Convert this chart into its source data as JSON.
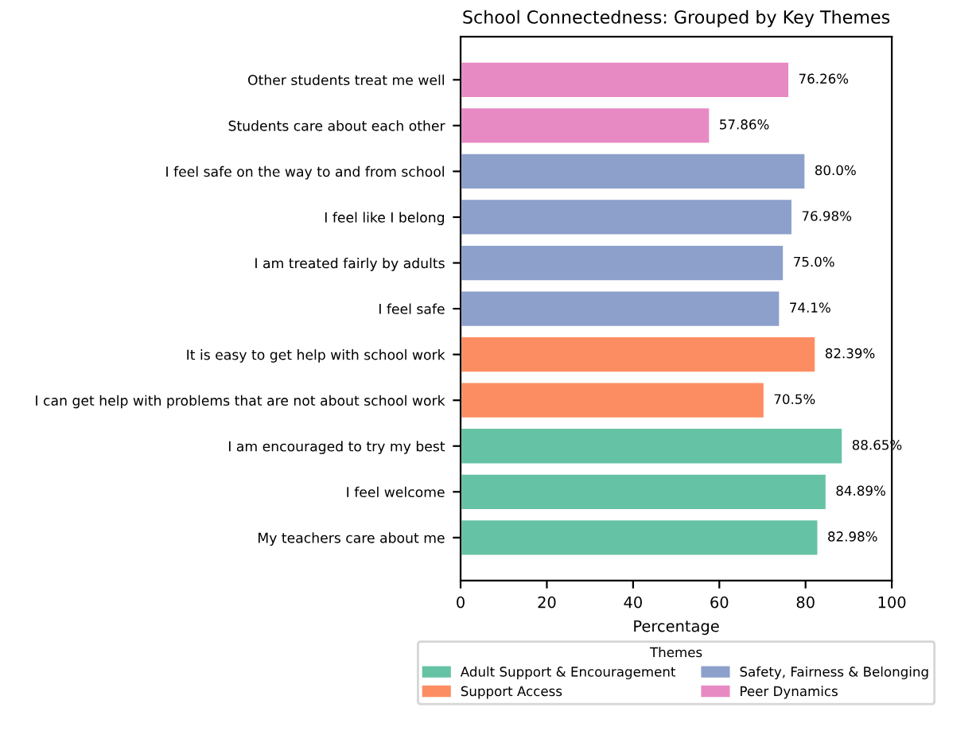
{
  "chart_data": {
    "type": "bar",
    "orientation": "horizontal",
    "title": "School Connectedness: Grouped by Key Themes",
    "xlabel": "Percentage",
    "legend_title": "Themes",
    "legend": "bottom",
    "categories": [
      "Other students treat me well",
      "Students care about each other",
      "I feel safe on the way to and from school",
      "I feel like I belong",
      "I am treated fairly by adults",
      "I feel safe",
      "It is easy to get help with school work",
      "I can get help with problems that are not about school work",
      "I am encouraged to try my best",
      "I feel welcome",
      "My teachers care about me"
    ],
    "series": [
      {
        "name": "Adult Support & Encouragement",
        "color": "#66c2a5",
        "values": [
          null,
          null,
          null,
          null,
          null,
          null,
          null,
          null,
          88.65,
          84.89,
          82.98
        ],
        "value_labels": [
          null,
          null,
          null,
          null,
          null,
          null,
          null,
          null,
          "88.65%",
          "84.89%",
          "82.98%"
        ]
      },
      {
        "name": "Support Access",
        "color": "#fc8d62",
        "values": [
          null,
          null,
          null,
          null,
          null,
          null,
          82.39,
          70.5,
          null,
          null,
          null
        ],
        "value_labels": [
          null,
          null,
          null,
          null,
          null,
          null,
          "82.39%",
          "70.5%",
          null,
          null,
          null
        ]
      },
      {
        "name": "Safety, Fairness & Belonging",
        "color": "#8da0cb",
        "values": [
          null,
          null,
          80.0,
          76.98,
          75.0,
          74.1,
          null,
          null,
          null,
          null,
          null
        ],
        "value_labels": [
          null,
          null,
          "80.0%",
          "76.98%",
          "75.0%",
          "74.1%",
          null,
          null,
          null,
          null,
          null
        ]
      },
      {
        "name": "Peer Dynamics",
        "color": "#e78ac3",
        "values": [
          76.26,
          57.86,
          null,
          null,
          null,
          null,
          null,
          null,
          null,
          null,
          null
        ],
        "value_labels": [
          "76.26%",
          "57.86%",
          null,
          null,
          null,
          null,
          null,
          null,
          null,
          null,
          null
        ]
      }
    ],
    "xlim": [
      0,
      100
    ],
    "xticks": [
      0,
      20,
      40,
      60,
      80,
      100
    ]
  }
}
